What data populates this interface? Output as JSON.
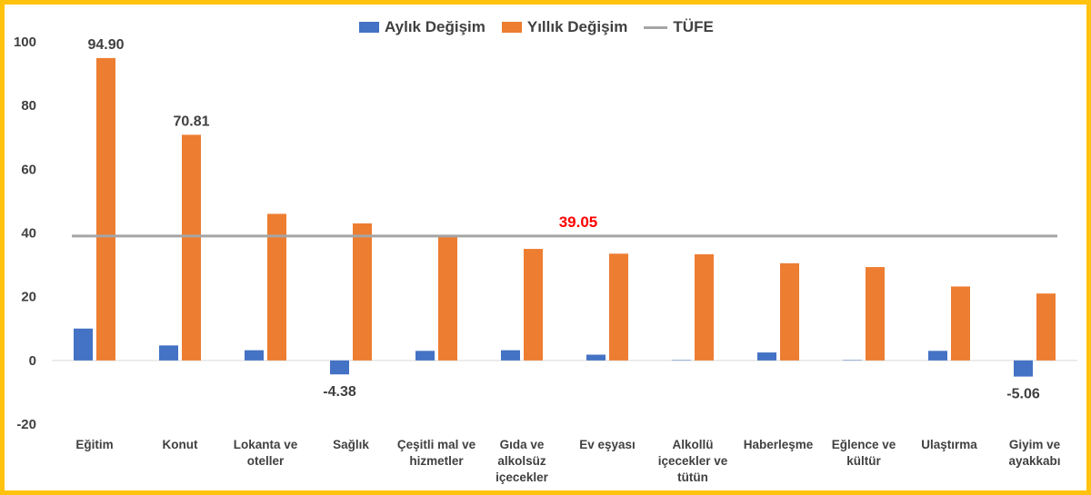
{
  "colors": {
    "monthly": "#4472C4",
    "yearly": "#ED7D31",
    "cpi": "#A5A5A5",
    "cpi_label": "#FF0000",
    "frame": "#FFC20E"
  },
  "chart_data": {
    "type": "bar",
    "categories": [
      [
        "Eğitim"
      ],
      [
        "Konut"
      ],
      [
        "Lokanta ve",
        "oteller"
      ],
      [
        "Sağlık"
      ],
      [
        "Çeşitli mal ve",
        "hizmetler"
      ],
      [
        "Gıda ve",
        "alkolsüz",
        "içecekler"
      ],
      [
        "Ev eşyası"
      ],
      [
        "Alkollü",
        "içecekler ve",
        "tütün"
      ],
      [
        "Haberleşme"
      ],
      [
        "Eğlence ve",
        "kültür"
      ],
      [
        "Ulaştırma"
      ],
      [
        "Giyim ve",
        "ayakkabı"
      ]
    ],
    "series": [
      {
        "name": "Aylık Değişim",
        "values": [
          10.0,
          4.7,
          3.2,
          -4.38,
          3.0,
          3.2,
          1.8,
          0.1,
          2.5,
          0.1,
          3.0,
          -5.06
        ]
      },
      {
        "name": "Yıllık Değişim",
        "values": [
          94.9,
          70.81,
          46.0,
          43.0,
          39.0,
          35.0,
          33.5,
          33.3,
          30.5,
          29.3,
          23.2,
          21.0
        ]
      }
    ],
    "reference_line": {
      "name": "TÜFE",
      "value": 39.05,
      "label": "39.05"
    },
    "data_labels": [
      {
        "series": 1,
        "index": 0,
        "text": "94.90"
      },
      {
        "series": 1,
        "index": 1,
        "text": "70.81"
      },
      {
        "series": 0,
        "index": 3,
        "text": "-4.38"
      },
      {
        "series": 0,
        "index": 11,
        "text": "-5.06"
      }
    ],
    "yticks": [
      "-20",
      "0",
      "20",
      "40",
      "60",
      "80",
      "100"
    ],
    "ylim": [
      -20,
      100
    ],
    "grid": false,
    "legend_position": "top-center",
    "title": "",
    "xlabel": "",
    "ylabel": ""
  }
}
